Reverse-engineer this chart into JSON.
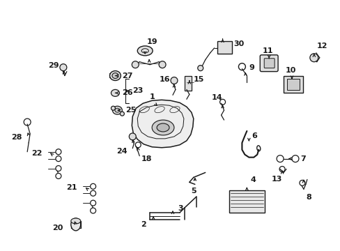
{
  "bg_color": "#ffffff",
  "fig_width": 4.89,
  "fig_height": 3.6,
  "dpi": 100,
  "line_color": "#1a1a1a",
  "font_size": 8.0
}
